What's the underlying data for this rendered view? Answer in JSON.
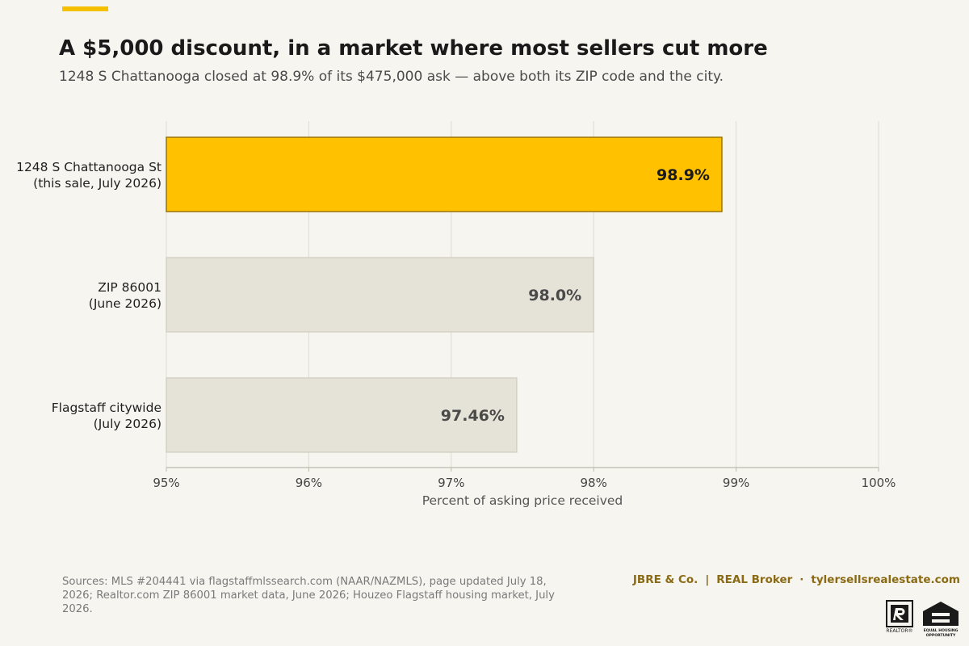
{
  "header": {
    "title": "A $5,000 discount, in a market where most sellers cut more",
    "subtitle": "1248 S Chattanooga closed at 98.9% of its $475,000 ask — above both its ZIP code and the city."
  },
  "chart_data": {
    "type": "bar",
    "orientation": "horizontal",
    "categories": [
      [
        "1248 S Chattanooga St",
        "(this sale, July 2026)"
      ],
      [
        "ZIP 86001",
        "(June 2026)"
      ],
      [
        "Flagstaff citywide",
        "(July 2026)"
      ]
    ],
    "values": [
      98.9,
      98.0,
      97.46
    ],
    "data_labels": [
      "98.9%",
      "98.0%",
      "97.46%"
    ],
    "highlight_index": 0,
    "xlim": [
      95,
      100
    ],
    "xticks": [
      95,
      96,
      97,
      98,
      99,
      100
    ],
    "xtick_labels": [
      "95%",
      "96%",
      "97%",
      "98%",
      "99%",
      "100%"
    ],
    "xlabel": "Percent of asking price received",
    "grid": "vertical"
  },
  "colors": {
    "highlight_fill": "#ffc100",
    "highlight_stroke": "#9a7400",
    "bar_fill": "#e5e2d8",
    "bar_stroke": "#cfcbbd",
    "accent": "#f5c000",
    "brand_text": "#8a6a14",
    "value_text_highlight": "#1a1a1a",
    "value_text": "#4a4a4a"
  },
  "footer": {
    "sources": "Sources: MLS #204441 via flagstaffmlssearch.com (NAAR/NAZMLS), page updated July 18, 2026; Realtor.com ZIP 86001 market data, June 2026; Houzeo Flagstaff housing market, July 2026.",
    "brand_name": "JBRE & Co.",
    "brand_sep1": "|",
    "brand_broker": "REAL Broker",
    "brand_sep2": "·",
    "brand_url": "tylersellsrealestate.com",
    "realtor_logo_text": "REALTOR®",
    "eho_logo_text": "EQUAL HOUSING OPPORTUNITY"
  }
}
